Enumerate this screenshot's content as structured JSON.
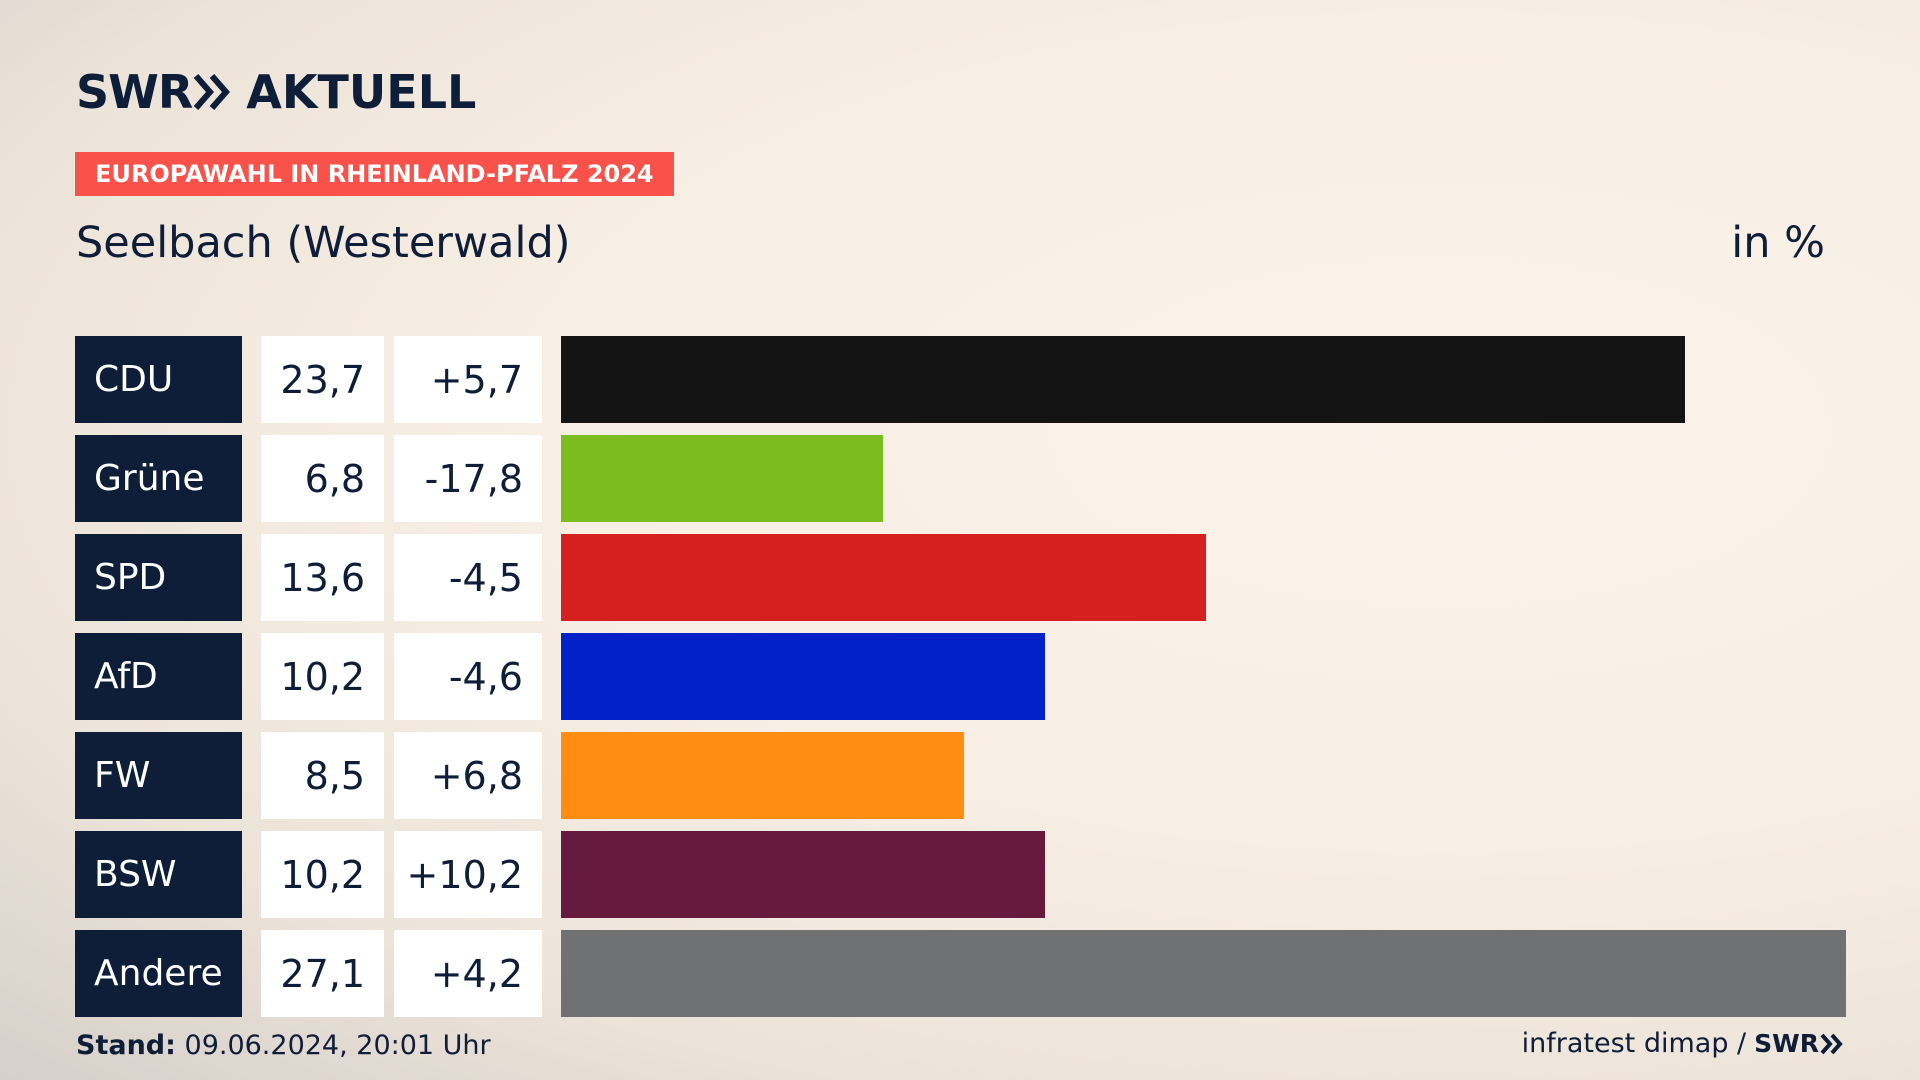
{
  "brand": {
    "logo_swr": "SWR",
    "logo_text": "AKTUELL",
    "footer_logo": "SWR"
  },
  "tag": "EUROPAWAHL IN RHEINLAND-PFALZ 2024",
  "place": "Seelbach (Westerwald)",
  "unit": "in %",
  "footer": {
    "stand_label": "Stand:",
    "stand_value": "09.06.2024, 20:01 Uhr",
    "source": "infratest dimap /"
  },
  "colors": {
    "navy": "#0e1d38",
    "tag": "#f9524a"
  },
  "chart_data": {
    "type": "bar",
    "categories": [
      "CDU",
      "Grüne",
      "SPD",
      "AfD",
      "FW",
      "BSW",
      "Andere"
    ],
    "values": [
      23.7,
      6.8,
      13.6,
      10.2,
      8.5,
      10.2,
      27.1
    ],
    "values_label": [
      "23,7",
      "6,8",
      "13,6",
      "10,2",
      "8,5",
      "10,2",
      "27,1"
    ],
    "diffs": [
      5.7,
      -17.8,
      -4.5,
      -4.6,
      6.8,
      10.2,
      4.2
    ],
    "diffs_label": [
      "+5,7",
      "-17,8",
      "-4,5",
      "-4,6",
      "+6,8",
      "+10,2",
      "+4,2"
    ],
    "colors": [
      "#141414",
      "#7bbd1e",
      "#d61f1f",
      "#0021c8",
      "#ff8d14",
      "#661a3e",
      "#707173"
    ],
    "xlim": [
      0,
      27.1
    ]
  }
}
